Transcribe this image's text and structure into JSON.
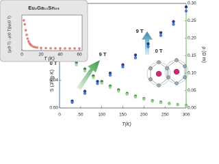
{
  "chart_data": [
    {
      "type": "scatter",
      "title": "Eu₂Ga₁₁Sn₃₅",
      "x_label": "T (K)",
      "y_label": "[ρ(9 T) - ρ(0 T)]/ρ(0 T)",
      "xlim": [
        0,
        60
      ],
      "xticks": [
        0,
        20,
        40,
        60
      ],
      "ylim": [
        0,
        1
      ],
      "series": [
        {
          "color": "#e5736a",
          "x": [
            2,
            3,
            4,
            5,
            6,
            7,
            8,
            9,
            10,
            12,
            14,
            16,
            20,
            25,
            30,
            35,
            40,
            45,
            50,
            55,
            60
          ],
          "values": [
            0.92,
            0.8,
            0.62,
            0.48,
            0.36,
            0.28,
            0.22,
            0.18,
            0.15,
            0.12,
            0.1,
            0.09,
            0.08,
            0.075,
            0.07,
            0.07,
            0.068,
            0.067,
            0.066,
            0.066,
            0.065
          ]
        }
      ]
    },
    {
      "type": "scatter",
      "x_label": "T(K)",
      "y_label": "S (J/Kg·K)",
      "y2_label": "ρ (Ω m)",
      "xlim": [
        0,
        300
      ],
      "xticks": [
        0,
        50,
        100,
        150,
        200,
        250,
        300
      ],
      "ylim": [
        0,
        0.15
      ],
      "yticks": [
        {
          "value": 0,
          "label": "0.00"
        },
        {
          "value": 0.04,
          "label": "0.04"
        },
        {
          "value": 0.08,
          "label": "0.08"
        }
      ],
      "y2lim": [
        0,
        0.3
      ],
      "y2ticks": [
        {
          "value": 0,
          "label": "0.00"
        },
        {
          "value": 0.05,
          "label": "0.05"
        },
        {
          "value": 0.1,
          "label": "0.10"
        },
        {
          "value": 0.15,
          "label": "0.15"
        },
        {
          "value": 0.2,
          "label": "0.20"
        },
        {
          "value": 0.25,
          "label": "0.25"
        },
        {
          "value": 0.3,
          "label": "0.30"
        }
      ],
      "annotations": [
        "0 T",
        "9 T",
        "9 T",
        "0 T"
      ],
      "series": [
        {
          "color": "#1b2a7a",
          "x": [
            30,
            60,
            90,
            120,
            150,
            180,
            210,
            240,
            270,
            300
          ],
          "values": [
            0.01,
            0.024,
            0.038,
            0.05,
            0.062,
            0.076,
            0.092,
            0.108,
            0.124,
            0.145
          ]
        },
        {
          "color": "#3d6fd6",
          "x": [
            30,
            60,
            90,
            120,
            150,
            180,
            210,
            240,
            270,
            300
          ],
          "values": [
            0.008,
            0.021,
            0.035,
            0.047,
            0.059,
            0.072,
            0.088,
            0.104,
            0.12,
            0.139
          ]
        },
        {
          "color": "#2d7a3a",
          "axis": "y2",
          "x": [
            40,
            60,
            80,
            100,
            120,
            140,
            160,
            180,
            200,
            220,
            240,
            260,
            280,
            300
          ],
          "values": [
            0.13,
            0.112,
            0.092,
            0.076,
            0.063,
            0.052,
            0.042,
            0.034,
            0.027,
            0.021,
            0.017,
            0.013,
            0.01,
            0.008
          ]
        },
        {
          "color": "#9bd68f",
          "axis": "y2",
          "x": [
            40,
            60,
            80,
            100,
            120,
            140,
            160,
            180,
            200,
            220,
            240,
            260,
            280,
            300
          ],
          "values": [
            0.124,
            0.106,
            0.087,
            0.071,
            0.059,
            0.048,
            0.039,
            0.031,
            0.025,
            0.019,
            0.015,
            0.012,
            0.009,
            0.007
          ]
        }
      ]
    }
  ]
}
